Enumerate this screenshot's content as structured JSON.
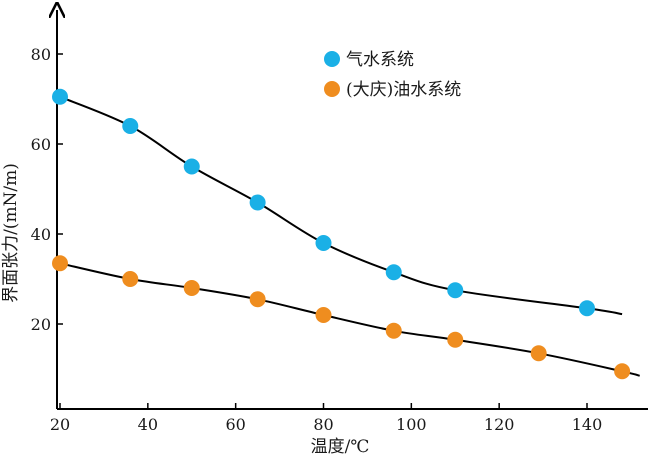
{
  "chart_data": {
    "type": "line",
    "xlabel": "温度/℃",
    "ylabel": "界面张力/(mN/m)",
    "xlim": [
      20,
      152
    ],
    "ylim": [
      0,
      90
    ],
    "xticks": [
      "20",
      "40",
      "60",
      "80",
      "100",
      "120",
      "140"
    ],
    "yticks": [
      "20",
      "40",
      "60",
      "80"
    ],
    "grid": false,
    "legend_position": "top-right",
    "series": [
      {
        "name": "气水系统",
        "color": "#1ab0e6",
        "marker": "circle",
        "x": [
          20,
          36,
          50,
          65,
          80,
          96,
          110,
          140
        ],
        "y": [
          70.5,
          64,
          55,
          47,
          38,
          31.5,
          27.5,
          23.5
        ],
        "curve_x": [
          20,
          36,
          50,
          65,
          80,
          96,
          110,
          140,
          148
        ],
        "curve_y": [
          70.5,
          64,
          55,
          47,
          38,
          31.5,
          27.5,
          23.5,
          22.2
        ]
      },
      {
        "name": "(大庆)油水系统",
        "color": "#ef8d1f",
        "marker": "circle",
        "x": [
          20,
          36,
          50,
          65,
          80,
          96,
          110,
          129,
          148
        ],
        "y": [
          33.5,
          30,
          28,
          25.5,
          22,
          18.5,
          16.5,
          13.5,
          9.5
        ],
        "curve_x": [
          20,
          36,
          50,
          65,
          80,
          96,
          110,
          129,
          148,
          152
        ],
        "curve_y": [
          33.5,
          30,
          28,
          25.5,
          22,
          18.5,
          16.5,
          13.5,
          9.5,
          8.5
        ]
      }
    ]
  }
}
